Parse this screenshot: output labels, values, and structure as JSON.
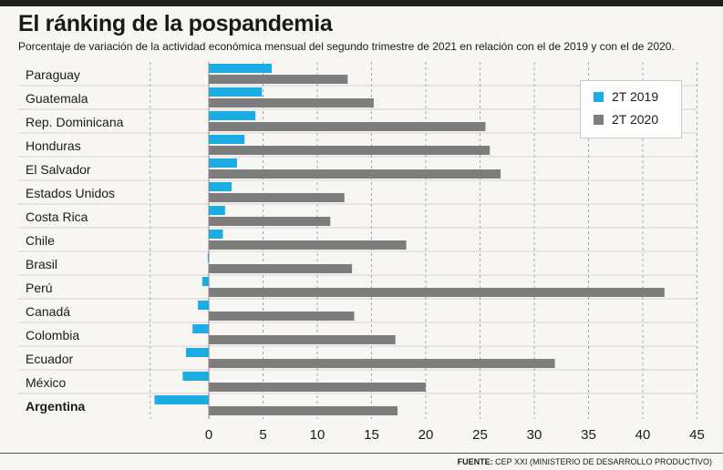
{
  "header": {
    "title": "El ránking de la pospandemia",
    "subtitle": "Porcentaje de variación de la actividad económica mensual del segundo trimestre de 2021 en relación con el de 2019 y con el de 2020."
  },
  "footer": {
    "source_label": "FUENTE:",
    "source_text": "CEP XXI (MINISTERIO DE DESARROLLO PRODUCTIVO)"
  },
  "legend": {
    "items": [
      "2T 2019",
      "2T 2020"
    ]
  },
  "colors": {
    "series_2019": "#1aace3",
    "series_2020": "#7d7d7d",
    "grid": "#a9a9a9",
    "row_divider": "#d4d4d4"
  },
  "chart_data": {
    "type": "bar",
    "orientation": "horizontal",
    "categories": [
      "Paraguay",
      "Guatemala",
      "Rep. Dominicana",
      "Honduras",
      "El Salvador",
      "Estados Unidos",
      "Costa Rica",
      "Chile",
      "Brasil",
      "Perú",
      "Canadá",
      "Colombia",
      "Ecuador",
      "México",
      "Argentina"
    ],
    "highlighted_category": "Argentina",
    "series": [
      {
        "name": "2T 2019",
        "values": [
          5.8,
          4.9,
          4.3,
          3.3,
          2.6,
          2.1,
          1.5,
          1.3,
          -0.1,
          -0.6,
          -1.0,
          -1.5,
          -2.1,
          -2.4,
          -5.0
        ]
      },
      {
        "name": "2T 2020",
        "values": [
          12.8,
          15.2,
          25.5,
          25.9,
          26.9,
          12.5,
          11.2,
          18.2,
          13.2,
          42.0,
          13.4,
          17.2,
          31.9,
          20.0,
          17.4
        ]
      }
    ],
    "x_ticks": [
      0,
      5,
      10,
      15,
      20,
      25,
      30,
      35,
      40,
      45
    ],
    "xlim": [
      -5.4,
      45
    ],
    "grid": true,
    "legend_position": "top-right"
  }
}
